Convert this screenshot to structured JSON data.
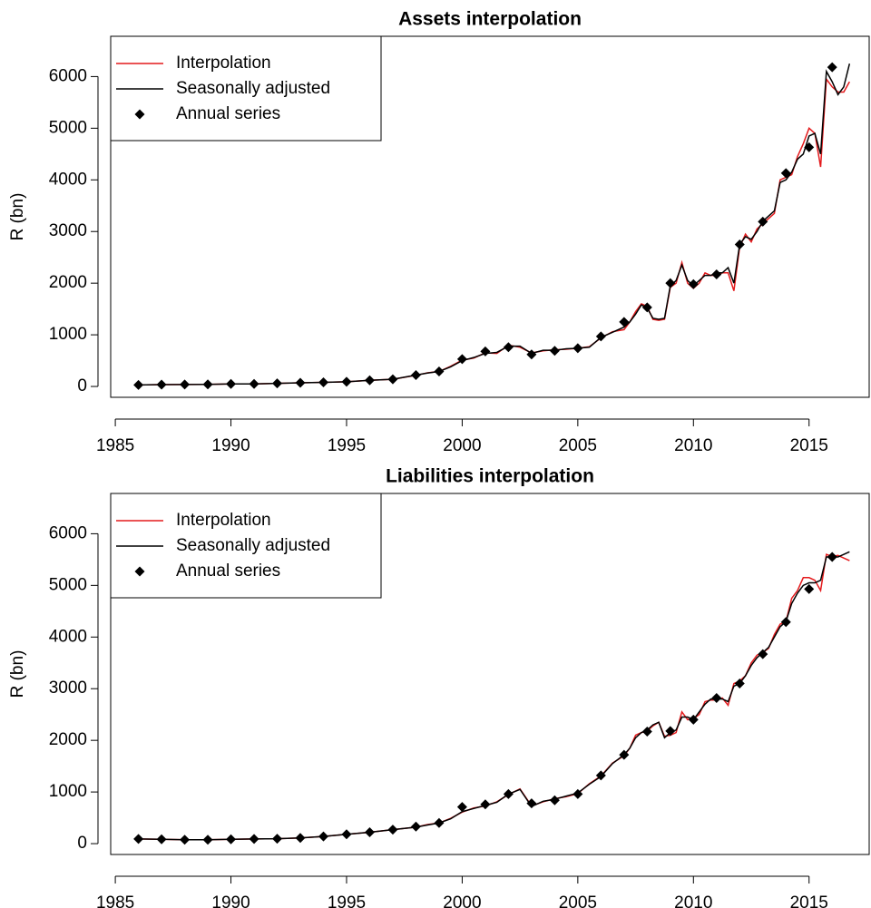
{
  "chart_data": [
    {
      "type": "line",
      "title": "Assets interpolation",
      "ylabel": "R (bn)",
      "xlim": [
        1984.8,
        2017.6
      ],
      "xticks": [
        1985,
        1990,
        1995,
        2000,
        2005,
        2010,
        2015
      ],
      "ylim": [
        -210,
        6780
      ],
      "yticks": [
        0,
        1000,
        2000,
        3000,
        4000,
        5000,
        6000
      ],
      "legend": "top-left",
      "x": [
        1986,
        1987,
        1988,
        1989,
        1990,
        1991,
        1992,
        1993,
        1994,
        1995,
        1996,
        1997,
        1998,
        1998.5,
        1999,
        1999.5,
        2000,
        2000.5,
        2001,
        2001.5,
        2002,
        2002.5,
        2003,
        2003.5,
        2004,
        2004.5,
        2005,
        2005.5,
        2006,
        2006.5,
        2007,
        2007.25,
        2007.5,
        2007.75,
        2008,
        2008.25,
        2008.5,
        2008.75,
        2009,
        2009.25,
        2009.5,
        2009.75,
        2010,
        2010.25,
        2010.5,
        2010.75,
        2011,
        2011.25,
        2011.5,
        2011.75,
        2012,
        2012.25,
        2012.5,
        2012.75,
        2013,
        2013.25,
        2013.5,
        2013.75,
        2014,
        2014.25,
        2014.5,
        2014.75,
        2015,
        2015.25,
        2015.5,
        2015.75,
        2016,
        2016.25,
        2016.5,
        2016.75
      ],
      "series": [
        {
          "name": "Interpolation",
          "color": "#e41a1c",
          "marker": "line",
          "values": [
            30,
            35,
            38,
            40,
            50,
            50,
            60,
            70,
            80,
            90,
            120,
            140,
            215,
            265,
            290,
            390,
            510,
            550,
            650,
            640,
            800,
            760,
            650,
            690,
            710,
            720,
            740,
            770,
            940,
            1060,
            1100,
            1250,
            1450,
            1600,
            1550,
            1300,
            1280,
            1300,
            1920,
            2000,
            2400,
            2000,
            1900,
            2000,
            2200,
            2150,
            2150,
            2200,
            2200,
            1850,
            2700,
            2950,
            2800,
            3050,
            3150,
            3250,
            3350,
            4000,
            4050,
            4100,
            4450,
            4700,
            5000,
            4900,
            4250,
            5950,
            5800,
            5700,
            5700,
            5900
          ]
        },
        {
          "name": "Seasonally adjusted",
          "color": "#000000",
          "marker": "line",
          "values": [
            30,
            35,
            38,
            40,
            50,
            50,
            60,
            70,
            80,
            90,
            120,
            140,
            220,
            260,
            290,
            380,
            500,
            560,
            640,
            660,
            780,
            780,
            640,
            700,
            700,
            730,
            740,
            760,
            950,
            1050,
            1150,
            1250,
            1400,
            1580,
            1520,
            1320,
            1300,
            1320,
            1950,
            2050,
            2350,
            2050,
            1950,
            2050,
            2150,
            2150,
            2200,
            2200,
            2300,
            2000,
            2750,
            2900,
            2850,
            3000,
            3200,
            3300,
            3400,
            3950,
            4000,
            4150,
            4400,
            4500,
            4850,
            4900,
            4500,
            6100,
            5900,
            5650,
            5800,
            6250
          ]
        },
        {
          "name": "Annual series",
          "color": "#000000",
          "marker": "diamond",
          "x": [
            1986,
            1987,
            1988,
            1989,
            1990,
            1991,
            1992,
            1993,
            1994,
            1995,
            1996,
            1997,
            1998,
            1999,
            2000,
            2001,
            2002,
            2003,
            2004,
            2005,
            2006,
            2007,
            2008,
            2009,
            2010,
            2011,
            2012,
            2013,
            2014,
            2015,
            2016
          ],
          "values": [
            30,
            35,
            38,
            40,
            50,
            50,
            60,
            70,
            80,
            90,
            120,
            140,
            220,
            290,
            530,
            680,
            760,
            620,
            690,
            740,
            970,
            1250,
            1530,
            2000,
            1980,
            2170,
            2750,
            3190,
            4130,
            4630,
            6180
          ]
        }
      ]
    },
    {
      "type": "line",
      "title": "Liabilities interpolation",
      "ylabel": "R (bn)",
      "xlim": [
        1984.8,
        2017.6
      ],
      "xticks": [
        1985,
        1990,
        1995,
        2000,
        2005,
        2010,
        2015
      ],
      "ylim": [
        -210,
        6780
      ],
      "yticks": [
        0,
        1000,
        2000,
        3000,
        4000,
        5000,
        6000
      ],
      "legend": "top-left",
      "x": [
        1986,
        1987,
        1988,
        1989,
        1990,
        1991,
        1992,
        1993,
        1994,
        1995,
        1996,
        1997,
        1998,
        1998.5,
        1999,
        1999.5,
        2000,
        2000.5,
        2001,
        2001.5,
        2002,
        2002.5,
        2003,
        2003.5,
        2004,
        2004.5,
        2005,
        2005.5,
        2006,
        2006.5,
        2007,
        2007.25,
        2007.5,
        2007.75,
        2008,
        2008.25,
        2008.5,
        2008.75,
        2009,
        2009.25,
        2009.5,
        2009.75,
        2010,
        2010.25,
        2010.5,
        2010.75,
        2011,
        2011.25,
        2011.5,
        2011.75,
        2012,
        2012.25,
        2012.5,
        2012.75,
        2013,
        2013.25,
        2013.5,
        2013.75,
        2014,
        2014.25,
        2014.5,
        2014.75,
        2015,
        2015.25,
        2015.5,
        2015.75,
        2016,
        2016.25,
        2016.5,
        2016.75
      ],
      "series": [
        {
          "name": "Interpolation",
          "color": "#e41a1c",
          "marker": "line",
          "values": [
            90,
            85,
            75,
            75,
            85,
            90,
            95,
            110,
            140,
            180,
            220,
            270,
            320,
            370,
            400,
            490,
            610,
            690,
            730,
            810,
            950,
            1060,
            730,
            810,
            870,
            910,
            970,
            1160,
            1310,
            1560,
            1700,
            1850,
            2100,
            2150,
            2180,
            2280,
            2350,
            2080,
            2100,
            2150,
            2550,
            2400,
            2420,
            2500,
            2750,
            2780,
            2780,
            2820,
            2680,
            3100,
            3150,
            3250,
            3500,
            3650,
            3700,
            3780,
            4050,
            4250,
            4300,
            4750,
            4900,
            5150,
            5150,
            5100,
            4900,
            5600,
            5560,
            5580,
            5530,
            5480
          ]
        },
        {
          "name": "Seasonally adjusted",
          "color": "#000000",
          "marker": "line",
          "values": [
            90,
            85,
            75,
            75,
            85,
            90,
            95,
            110,
            140,
            180,
            220,
            270,
            320,
            360,
            400,
            480,
            620,
            680,
            740,
            800,
            960,
            1050,
            720,
            820,
            860,
            920,
            980,
            1150,
            1300,
            1550,
            1720,
            1850,
            2050,
            2150,
            2200,
            2300,
            2350,
            2050,
            2150,
            2200,
            2450,
            2450,
            2400,
            2550,
            2700,
            2800,
            2800,
            2800,
            2750,
            3050,
            3100,
            3250,
            3450,
            3600,
            3700,
            3800,
            4000,
            4200,
            4300,
            4650,
            4850,
            5000,
            5050,
            5050,
            5100,
            5550,
            5550,
            5550,
            5600,
            5650
          ]
        },
        {
          "name": "Annual series",
          "color": "#000000",
          "marker": "diamond",
          "x": [
            1986,
            1987,
            1988,
            1989,
            1990,
            1991,
            1992,
            1993,
            1994,
            1995,
            1996,
            1997,
            1998,
            1999,
            2000,
            2001,
            2002,
            2003,
            2004,
            2005,
            2006,
            2007,
            2008,
            2009,
            2010,
            2011,
            2012,
            2013,
            2014,
            2015,
            2016
          ],
          "values": [
            90,
            85,
            75,
            75,
            85,
            90,
            95,
            110,
            140,
            180,
            220,
            270,
            330,
            400,
            710,
            760,
            960,
            780,
            840,
            960,
            1320,
            1720,
            2170,
            2180,
            2400,
            2820,
            3100,
            3670,
            4290,
            4930,
            5550
          ]
        }
      ]
    }
  ]
}
